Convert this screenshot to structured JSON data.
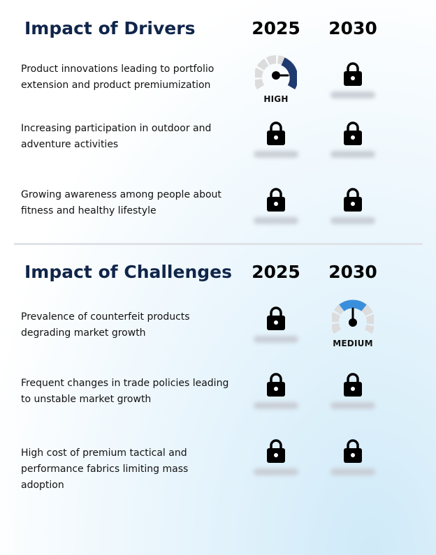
{
  "drivers": {
    "title": "Impact of Drivers",
    "year1": "2025",
    "year2": "2030",
    "rows": [
      {
        "text": "Product innovations leading to portfolio extension and product premiumization",
        "y2025": {
          "type": "gauge",
          "level": "high",
          "label": "HIGH"
        },
        "y2030": {
          "type": "locked"
        }
      },
      {
        "text": "Increasing participation in outdoor and adventure activities",
        "y2025": {
          "type": "locked"
        },
        "y2030": {
          "type": "locked"
        }
      },
      {
        "text": "Growing awareness among people about fitness and healthy lifestyle",
        "y2025": {
          "type": "locked"
        },
        "y2030": {
          "type": "locked"
        }
      }
    ]
  },
  "challenges": {
    "title": "Impact of Challenges",
    "year1": "2025",
    "year2": "2030",
    "rows": [
      {
        "text": "Prevalence of counterfeit products degrading market growth",
        "y2025": {
          "type": "locked"
        },
        "y2030": {
          "type": "gauge",
          "level": "medium",
          "label": "MEDIUM"
        }
      },
      {
        "text": "Frequent changes in trade policies leading to unstable market growth",
        "y2025": {
          "type": "locked"
        },
        "y2030": {
          "type": "locked"
        }
      },
      {
        "text": "High cost of premium tactical and performance fabrics limiting mass adoption",
        "y2025": {
          "type": "locked"
        },
        "y2030": {
          "type": "locked"
        }
      }
    ]
  },
  "colors": {
    "title": "#10254a",
    "gauge_high": "#1f3a6e",
    "gauge_medium": "#3a8fdc",
    "gauge_track": "#dcdcdc"
  },
  "icons": {
    "locked": "lock-icon",
    "gauge": "gauge-icon"
  }
}
